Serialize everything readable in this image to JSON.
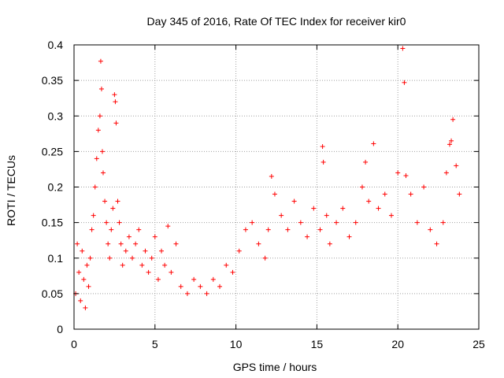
{
  "chart_data": {
    "type": "scatter",
    "title": "Day 345 of 2016, Rate Of TEC Index for receiver kir0",
    "xlabel": "GPS time / hours",
    "ylabel": "ROTI / TECUs",
    "xlim": [
      0,
      25
    ],
    "ylim": [
      0,
      0.4
    ],
    "xticks": [
      0,
      5,
      10,
      15,
      20,
      25
    ],
    "xtick_labels": [
      "0",
      "5",
      "10",
      "15",
      "20",
      "25"
    ],
    "yticks": [
      0,
      0.05,
      0.1,
      0.15,
      0.2,
      0.25,
      0.3,
      0.35,
      0.4
    ],
    "ytick_labels": [
      "0",
      "0.05",
      "0.1",
      "0.15",
      "0.2",
      "0.25",
      "0.3",
      "0.35",
      "0.4"
    ],
    "grid": true,
    "marker": "+",
    "marker_color": "#ff0000",
    "series": [
      {
        "name": "ROTI",
        "points": [
          [
            0.1,
            0.05
          ],
          [
            0.2,
            0.12
          ],
          [
            0.3,
            0.08
          ],
          [
            0.4,
            0.04
          ],
          [
            0.5,
            0.11
          ],
          [
            0.6,
            0.07
          ],
          [
            0.7,
            0.03
          ],
          [
            0.8,
            0.09
          ],
          [
            0.9,
            0.06
          ],
          [
            1.0,
            0.1
          ],
          [
            1.1,
            0.14
          ],
          [
            1.2,
            0.16
          ],
          [
            1.3,
            0.2
          ],
          [
            1.4,
            0.24
          ],
          [
            1.5,
            0.28
          ],
          [
            1.6,
            0.3
          ],
          [
            1.65,
            0.377
          ],
          [
            1.7,
            0.338
          ],
          [
            1.75,
            0.25
          ],
          [
            1.8,
            0.22
          ],
          [
            1.9,
            0.18
          ],
          [
            2.0,
            0.15
          ],
          [
            2.1,
            0.12
          ],
          [
            2.2,
            0.1
          ],
          [
            2.3,
            0.14
          ],
          [
            2.4,
            0.17
          ],
          [
            2.5,
            0.33
          ],
          [
            2.55,
            0.32
          ],
          [
            2.6,
            0.29
          ],
          [
            2.7,
            0.18
          ],
          [
            2.8,
            0.15
          ],
          [
            2.9,
            0.12
          ],
          [
            3.0,
            0.09
          ],
          [
            3.2,
            0.11
          ],
          [
            3.4,
            0.13
          ],
          [
            3.6,
            0.1
          ],
          [
            3.8,
            0.12
          ],
          [
            4.0,
            0.14
          ],
          [
            4.2,
            0.09
          ],
          [
            4.4,
            0.11
          ],
          [
            4.6,
            0.08
          ],
          [
            4.8,
            0.1
          ],
          [
            5.0,
            0.13
          ],
          [
            5.2,
            0.07
          ],
          [
            5.4,
            0.11
          ],
          [
            5.6,
            0.09
          ],
          [
            5.8,
            0.145
          ],
          [
            6.0,
            0.08
          ],
          [
            6.3,
            0.12
          ],
          [
            6.6,
            0.06
          ],
          [
            7.0,
            0.05
          ],
          [
            7.4,
            0.07
          ],
          [
            7.8,
            0.06
          ],
          [
            8.2,
            0.05
          ],
          [
            8.6,
            0.07
          ],
          [
            9.0,
            0.06
          ],
          [
            9.4,
            0.09
          ],
          [
            9.8,
            0.08
          ],
          [
            10.2,
            0.11
          ],
          [
            10.6,
            0.14
          ],
          [
            11.0,
            0.15
          ],
          [
            11.4,
            0.12
          ],
          [
            11.8,
            0.1
          ],
          [
            12.0,
            0.14
          ],
          [
            12.2,
            0.215
          ],
          [
            12.4,
            0.19
          ],
          [
            12.8,
            0.16
          ],
          [
            13.2,
            0.14
          ],
          [
            13.6,
            0.18
          ],
          [
            14.0,
            0.15
          ],
          [
            14.4,
            0.13
          ],
          [
            14.8,
            0.17
          ],
          [
            15.2,
            0.14
          ],
          [
            15.35,
            0.257
          ],
          [
            15.4,
            0.235
          ],
          [
            15.6,
            0.16
          ],
          [
            15.8,
            0.12
          ],
          [
            16.2,
            0.15
          ],
          [
            16.6,
            0.17
          ],
          [
            17.0,
            0.13
          ],
          [
            17.4,
            0.15
          ],
          [
            17.8,
            0.2
          ],
          [
            18.0,
            0.235
          ],
          [
            18.2,
            0.18
          ],
          [
            18.5,
            0.261
          ],
          [
            18.8,
            0.17
          ],
          [
            19.2,
            0.19
          ],
          [
            19.6,
            0.16
          ],
          [
            20.0,
            0.22
          ],
          [
            20.3,
            0.395
          ],
          [
            20.4,
            0.347
          ],
          [
            20.5,
            0.216
          ],
          [
            20.8,
            0.19
          ],
          [
            21.2,
            0.15
          ],
          [
            21.6,
            0.2
          ],
          [
            22.0,
            0.14
          ],
          [
            22.4,
            0.12
          ],
          [
            22.8,
            0.15
          ],
          [
            23.0,
            0.22
          ],
          [
            23.2,
            0.26
          ],
          [
            23.3,
            0.265
          ],
          [
            23.4,
            0.295
          ],
          [
            23.6,
            0.23
          ],
          [
            23.8,
            0.19
          ]
        ]
      }
    ]
  }
}
